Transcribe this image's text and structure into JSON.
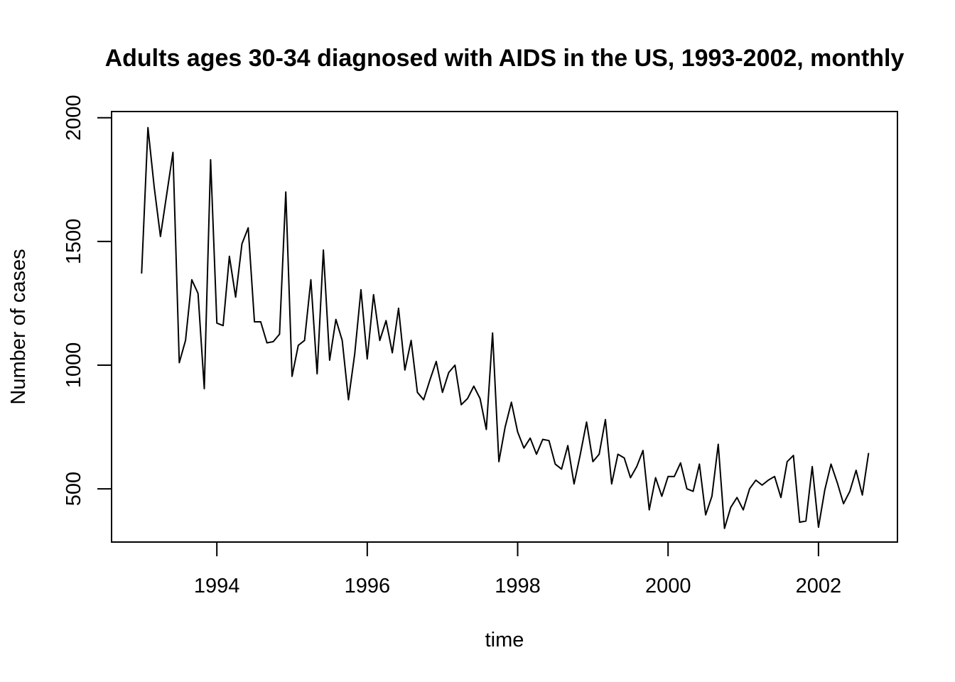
{
  "chart_data": {
    "type": "line",
    "title": "Adults ages 30-34 diagnosed with AIDS in the US, 1993-2002, monthly",
    "xlabel": "time",
    "ylabel": "Number of cases",
    "x_ticks": [
      1994,
      1996,
      1998,
      2000,
      2002
    ],
    "y_ticks": [
      500,
      1000,
      1500,
      2000
    ],
    "x_start": "1993-01",
    "x_frequency": "monthly",
    "xlim": [
      1992.6,
      2003.05
    ],
    "ylim": [
      285,
      2025
    ],
    "grid": false,
    "colors": {
      "line": "#000000",
      "frame": "#000000"
    },
    "series": [
      {
        "values": [
          1370,
          1960,
          1720,
          1520,
          1690,
          1860,
          1010,
          1100,
          1345,
          1290,
          905,
          1830,
          1170,
          1160,
          1440,
          1275,
          1490,
          1555,
          1175,
          1175,
          1090,
          1095,
          1125,
          1700,
          955,
          1080,
          1100,
          1345,
          965,
          1465,
          1020,
          1185,
          1100,
          860,
          1045,
          1305,
          1025,
          1285,
          1100,
          1180,
          1050,
          1230,
          980,
          1100,
          890,
          860,
          940,
          1015,
          890,
          970,
          1000,
          840,
          865,
          915,
          865,
          740,
          1130,
          610,
          750,
          850,
          730,
          665,
          705,
          640,
          700,
          695,
          600,
          580,
          675,
          520,
          640,
          770,
          610,
          640,
          780,
          520,
          640,
          625,
          545,
          590,
          655,
          415,
          545,
          470,
          550,
          550,
          605,
          500,
          490,
          600,
          395,
          470,
          680,
          340,
          425,
          465,
          415,
          500,
          535,
          515,
          535,
          550,
          465,
          610,
          635,
          365,
          370,
          590,
          345,
          495,
          600,
          525,
          440,
          490,
          575,
          475,
          645
        ]
      }
    ]
  }
}
